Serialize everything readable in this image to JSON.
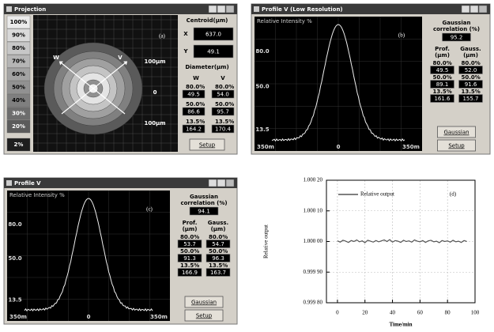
{
  "panel_a": {
    "title": "Projection",
    "label": "(a)",
    "scale": [
      "100%",
      "90%",
      "80%",
      "70%",
      "60%",
      "50%",
      "40%",
      "30%",
      "20%",
      "2%"
    ],
    "arrows": [
      "W",
      "V"
    ],
    "ruler": [
      "100μm",
      "0",
      "100μm"
    ],
    "centroid_heading": "Centroid(μm)",
    "x_label": "X",
    "x_value": "637.0",
    "y_label": "Y",
    "y_value": "49.1",
    "diameter_heading": "Diameter(μm)",
    "columns": [
      "W",
      "V"
    ],
    "rows": [
      [
        "80.0%",
        "49.5",
        "80.0%",
        "54.0"
      ],
      [
        "50.0%",
        "86.6",
        "50.0%",
        "95.7"
      ],
      [
        "13.5%",
        "164.2",
        "13.5%",
        "170.4"
      ]
    ],
    "setup": "Setup"
  },
  "panel_b": {
    "title": "Profile V  (Low Resolution)",
    "label": "(b)",
    "y_title": "Relative Intensity %",
    "yticks": [
      "80.0",
      "50.0",
      "13.5"
    ],
    "xticks": [
      "350m",
      "0",
      "350m"
    ],
    "corr_heading": [
      "Gaussian",
      "correlation (%)"
    ],
    "corr": "95.2",
    "headers": [
      [
        "Prof.",
        "(μm)"
      ],
      [
        "Gauss.",
        "(μm)"
      ]
    ],
    "rows": [
      [
        "80.0%",
        "49.5",
        "80.0%",
        "52.0"
      ],
      [
        "50.0%",
        "89.1",
        "50.0%",
        "91.6"
      ],
      [
        "13.5%",
        "161.6",
        "13.5%",
        "155.7"
      ]
    ],
    "buttons": [
      "Gaussian",
      "Setup"
    ]
  },
  "panel_c": {
    "title": "Profile V",
    "label": "(c)",
    "y_title": "Relative Intensity %",
    "yticks": [
      "80.0",
      "50.0",
      "13.5"
    ],
    "xticks": [
      "350m",
      "0",
      "350m"
    ],
    "corr_heading": [
      "Gaussian",
      "correlation (%)"
    ],
    "corr": "94.1",
    "headers": [
      [
        "Prof.",
        "(μm)"
      ],
      [
        "Gauss.",
        "(μm)"
      ]
    ],
    "rows": [
      [
        "80.0%",
        "53.7",
        "80.0%",
        "54.7"
      ],
      [
        "50.0%",
        "91.3",
        "50.0%",
        "96.3"
      ],
      [
        "13.5%",
        "166.9",
        "13.5%",
        "163.7"
      ]
    ],
    "buttons": [
      "Gaussian",
      "Setup"
    ]
  },
  "chart_data": {
    "type": "line",
    "annotation": "(d)",
    "xlabel": "Time/min",
    "ylabel": "Relative output",
    "x": [
      0,
      2,
      4,
      6,
      8,
      10,
      12,
      14,
      16,
      18,
      20,
      22,
      24,
      26,
      28,
      30,
      32,
      34,
      36,
      38,
      40,
      42,
      44,
      46,
      48,
      50,
      52,
      54,
      56,
      58,
      60,
      62,
      64,
      66,
      68,
      70,
      72,
      74,
      76,
      78,
      80,
      82,
      84,
      86,
      88,
      90,
      92,
      94
    ],
    "series": [
      {
        "name": "Relative output",
        "color": "#555555",
        "values": [
          1.000002,
          0.999998,
          1.000004,
          1.000001,
          0.999997,
          1.000003,
          1.0,
          1.000005,
          0.999999,
          1.000002,
          0.999996,
          1.000004,
          1.000001,
          0.999998,
          1.000003,
          0.999999,
          1.000002,
          1.000005,
          1.0,
          1.000006,
          0.999998,
          1.000003,
          1.000001,
          0.999997,
          1.000004,
          1.0,
          1.000002,
          0.999998,
          1.000005,
          1.000001,
          0.999999,
          1.000003,
          0.999997,
          1.000002,
          1.000004,
          0.999999,
          1.000001,
          0.999996,
          1.000003,
          1.0,
          1.000002,
          0.999998,
          1.000004,
          0.999999,
          1.000001,
          0.999997,
          1.000003,
          1.0
        ]
      }
    ],
    "xlim": [
      -8,
      100
    ],
    "ylim": [
      0.9998,
      1.0002
    ],
    "xticks": [
      0,
      20,
      40,
      60,
      80,
      100
    ],
    "yticks": [
      {
        "value": 0.9998,
        "label": "0.999 80"
      },
      {
        "value": 0.9999,
        "label": "0.999 90"
      },
      {
        "value": 1.0,
        "label": "1.000 00"
      },
      {
        "value": 1.0001,
        "label": "1.000 10"
      },
      {
        "value": 1.0002,
        "label": "1.000 20"
      }
    ],
    "grid": true,
    "legend": "upper left"
  }
}
